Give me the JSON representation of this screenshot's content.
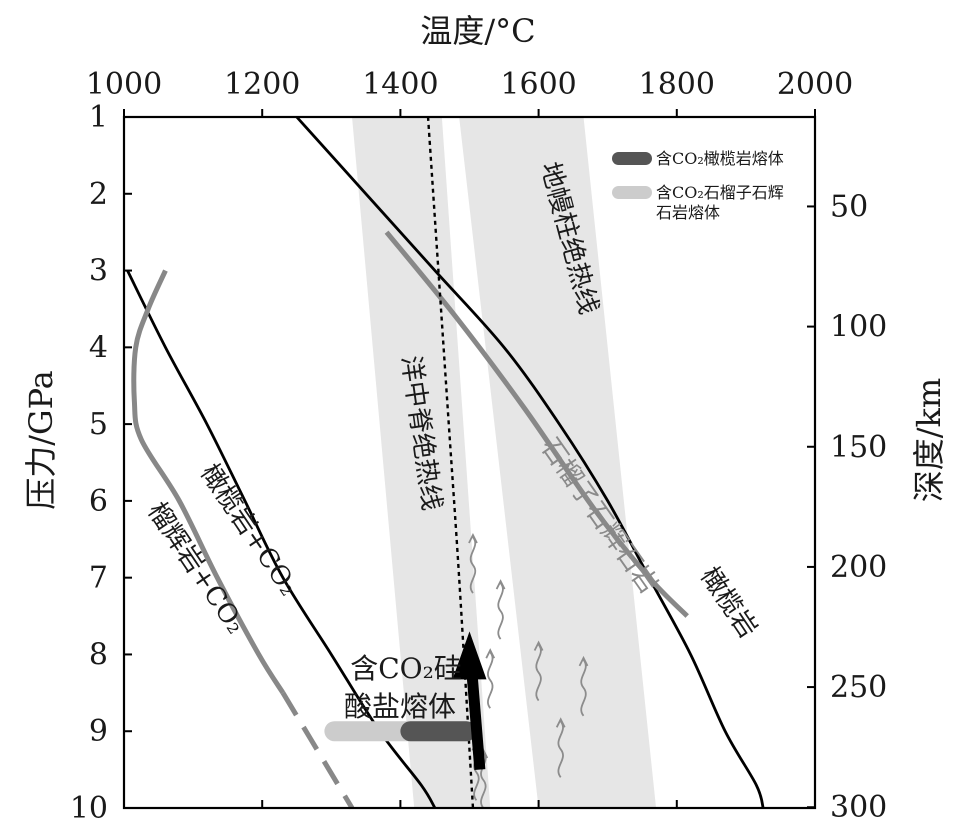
{
  "chart_data": {
    "type": "line",
    "x_axis": {
      "title": "温度/°C",
      "range": [
        1000,
        2000
      ],
      "ticks": [
        "1000",
        "1200",
        "1400",
        "1600",
        "1800",
        "2000"
      ],
      "tick_values": [
        1000,
        1200,
        1400,
        1600,
        1800,
        2000
      ]
    },
    "y_axis_left": {
      "title": "压力/GPa",
      "range": [
        1,
        10
      ],
      "ticks": [
        "1",
        "2",
        "3",
        "4",
        "5",
        "6",
        "7",
        "8",
        "9",
        "10"
      ],
      "tick_values": [
        1,
        2,
        3,
        4,
        5,
        6,
        7,
        8,
        9,
        10
      ]
    },
    "y_axis_right": {
      "title": "深度/km",
      "ticks": [
        "50",
        "100",
        "150",
        "200",
        "250",
        "300"
      ],
      "tick_values": [
        50,
        100,
        150,
        200,
        250,
        300
      ]
    },
    "bands": [
      {
        "label": "洋中脊绝热线",
        "color": "#e6e6e6",
        "polygon": [
          [
            1330,
            1
          ],
          [
            1460,
            1
          ],
          [
            1530,
            10
          ],
          [
            1420,
            10
          ]
        ]
      },
      {
        "label": "地幔柱绝热线",
        "color": "#e6e6e6",
        "polygon": [
          [
            1485,
            1
          ],
          [
            1665,
            1
          ],
          [
            1770,
            10
          ],
          [
            1600,
            10
          ]
        ]
      }
    ],
    "series": [
      {
        "label": "橄榄岩+CO₂",
        "color": "#000000",
        "style": "solid",
        "points": [
          [
            1005,
            3
          ],
          [
            1060,
            4
          ],
          [
            1120,
            5
          ],
          [
            1175,
            6
          ],
          [
            1230,
            7
          ],
          [
            1300,
            8
          ],
          [
            1370,
            9
          ],
          [
            1430,
            9.7
          ],
          [
            1450,
            10
          ]
        ]
      },
      {
        "label": "榴辉岩+CO₂",
        "color": "#888888",
        "style": "solid",
        "points": [
          [
            1060,
            3
          ],
          [
            1035,
            3.5
          ],
          [
            1017,
            4
          ],
          [
            1015,
            4.7
          ],
          [
            1025,
            5.2
          ],
          [
            1080,
            6
          ],
          [
            1135,
            7
          ],
          [
            1195,
            8
          ],
          [
            1230,
            8.5
          ]
        ]
      },
      {
        "color": "#888888",
        "style": "dashed",
        "points": [
          [
            1230,
            8.5
          ],
          [
            1270,
            9.1
          ],
          [
            1330,
            10
          ]
        ]
      },
      {
        "label": "橄榄岩",
        "color": "#000000",
        "style": "solid",
        "points": [
          [
            1250,
            1
          ],
          [
            1350,
            2
          ],
          [
            1450,
            3
          ],
          [
            1550,
            4
          ],
          [
            1630,
            5
          ],
          [
            1700,
            6
          ],
          [
            1760,
            7
          ],
          [
            1820,
            8
          ],
          [
            1870,
            9
          ],
          [
            1915,
            9.7
          ],
          [
            1925,
            10
          ]
        ]
      },
      {
        "label": "石榴子石辉石岩",
        "color": "#888888",
        "style": "solid",
        "points": [
          [
            1380,
            2.5
          ],
          [
            1480,
            3.6
          ],
          [
            1580,
            4.8
          ],
          [
            1680,
            6.1
          ],
          [
            1760,
            7
          ],
          [
            1815,
            7.5
          ]
        ]
      },
      {
        "label": "洋中脊绝热线中心线",
        "color": "#000000",
        "style": "dotted",
        "points": [
          [
            1440,
            1
          ],
          [
            1455,
            3
          ],
          [
            1470,
            5
          ],
          [
            1485,
            7
          ],
          [
            1505,
            10
          ]
        ]
      }
    ],
    "melt_zone": {
      "label_line1": "含CO₂硅",
      "label_line2": "酸盐熔体",
      "pressure": 9,
      "silicate_range": [
        1290,
        1510
      ],
      "peridotite_range": [
        1400,
        1510
      ],
      "silicate_color": "#cccccc",
      "peridotite_color": "#555555"
    },
    "arrow": {
      "from": [
        1515,
        9.5
      ],
      "to": [
        1500,
        7.7
      ],
      "color": "#000000"
    },
    "legend": {
      "position": "top-right",
      "entries": [
        {
          "label": "含CO₂橄榄岩熔体",
          "color": "#555555"
        },
        {
          "label_line1": "含CO₂石榴子石辉",
          "label_line2": "石岩熔体",
          "color": "#cccccc"
        }
      ]
    },
    "grid": false
  }
}
